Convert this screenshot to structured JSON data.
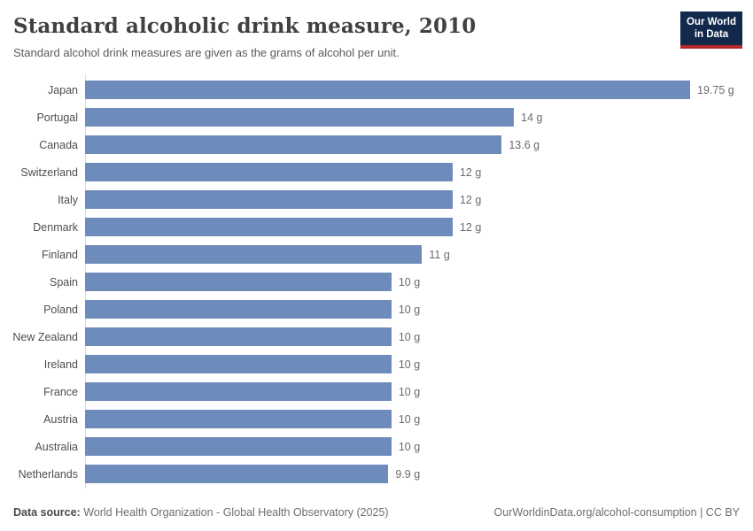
{
  "header": {
    "title": "Standard alcoholic drink measure, 2010",
    "subtitle": "Standard alcohol drink measures are given as the grams of alcohol per unit.",
    "logo_line1": "Our World",
    "logo_line2": "in Data"
  },
  "chart_data": {
    "type": "bar",
    "orientation": "horizontal",
    "title": "Standard alcoholic drink measure, 2010",
    "unit": "grams of alcohol per unit",
    "categories": [
      "Japan",
      "Portugal",
      "Canada",
      "Switzerland",
      "Italy",
      "Denmark",
      "Finland",
      "Spain",
      "Poland",
      "New Zealand",
      "Ireland",
      "France",
      "Austria",
      "Australia",
      "Netherlands"
    ],
    "values": [
      19.75,
      14,
      13.6,
      12,
      12,
      12,
      11,
      10,
      10,
      10,
      10,
      10,
      10,
      10,
      9.9
    ],
    "value_labels": [
      "19.75 g",
      "14 g",
      "13.6 g",
      "12 g",
      "12 g",
      "12 g",
      "11 g",
      "10 g",
      "10 g",
      "10 g",
      "10 g",
      "10 g",
      "10 g",
      "10 g",
      "9.9 g"
    ],
    "xlim": [
      0,
      19.75
    ],
    "bar_color": "#6d8bbb",
    "axis_color": "#dcdcdc",
    "grid": false,
    "legend": false
  },
  "footer": {
    "source_label": "Data source:",
    "source_text": "World Health Organization - Global Health Observatory (2025)",
    "link_text": "OurWorldinData.org/alcohol-consumption | CC BY"
  },
  "colors": {
    "bar": "#6d8bbb",
    "logo_background": "#12294b",
    "logo_accent_red": "#b5292b",
    "title_text": "#414141",
    "subtitle_text": "#5b5b5b",
    "value_text": "#6b6b6b"
  }
}
